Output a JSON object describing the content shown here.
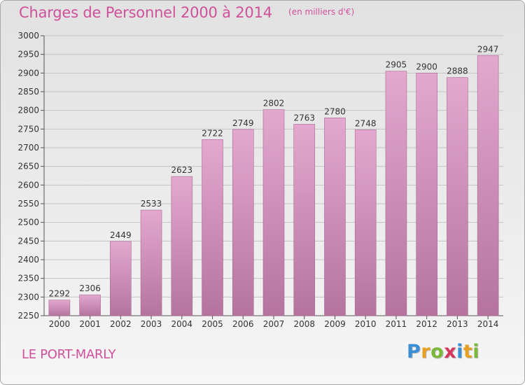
{
  "header": {
    "title": "Charges de Personnel 2000 à 2014",
    "unit": "(en milliers d'€)"
  },
  "footer": {
    "commune": "LE PORT-MARLY",
    "logo": {
      "letters": [
        "P",
        "r",
        "o",
        "x",
        "i",
        "t",
        "i"
      ],
      "colors": [
        "#3b8fd4",
        "#e8a020",
        "#7ab83a",
        "#d8365e",
        "#3b8fd4",
        "#e8a020",
        "#7ab83a"
      ]
    }
  },
  "colors": {
    "bar_top": "#e4a8cf",
    "bar_bottom": "#b4749e",
    "bar_edge": "#a86b94",
    "title": "#d0509a"
  },
  "chart_data": {
    "type": "bar",
    "title": "Charges de Personnel 2000 à 2014",
    "subtitle": "(en milliers d'€)",
    "xlabel": "",
    "ylabel": "",
    "categories": [
      "2000",
      "2001",
      "2002",
      "2003",
      "2004",
      "2005",
      "2006",
      "2007",
      "2008",
      "2009",
      "2010",
      "2011",
      "2012",
      "2013",
      "2014"
    ],
    "values": [
      2292,
      2306,
      2449,
      2533,
      2623,
      2722,
      2749,
      2802,
      2763,
      2780,
      2748,
      2905,
      2900,
      2888,
      2947
    ],
    "ylim": [
      2250,
      3000
    ],
    "yticks": [
      2250,
      2300,
      2350,
      2400,
      2450,
      2500,
      2550,
      2600,
      2650,
      2700,
      2750,
      2800,
      2850,
      2900,
      2950,
      3000
    ],
    "grid": true,
    "data_labels": true
  }
}
